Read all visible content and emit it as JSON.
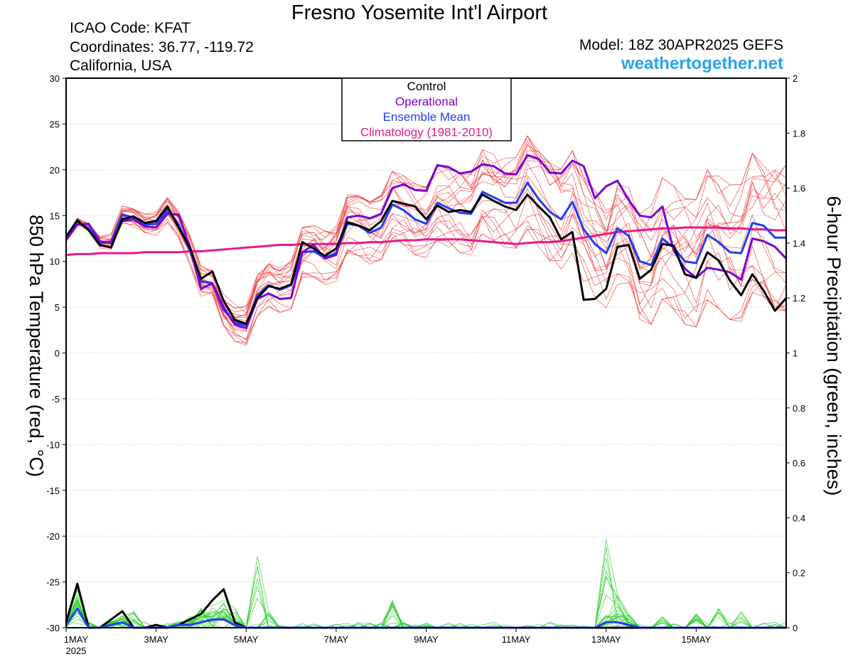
{
  "header": {
    "title": "Fresno Yosemite Int'l Airport",
    "icao": "ICAO Code: KFAT",
    "coordinates": "Coordinates: 36.77, -119.72",
    "region": "California, USA",
    "model": "Model: 18Z 30APR2025 GEFS",
    "website": "weathertogether.net"
  },
  "colors": {
    "control": "#000000",
    "operational": "#7b00d4",
    "ensemble_mean": "#1f3ff0",
    "climatology": "#e8198b",
    "members_temp": "#f03a3a",
    "members_precip": "#22cc22",
    "website": "#2aa3ea"
  },
  "chart_data": {
    "type": "line",
    "legend": [
      "Control",
      "Operational",
      "Ensemble Mean",
      "Climatology (1981-2010)"
    ],
    "legend_position": "top-center",
    "x_step_hours": 6,
    "x_start": "1MAY2025 00Z",
    "x_ticks": [
      {
        "i": 0,
        "label": "1MAY",
        "sub": "2025"
      },
      {
        "i": 8,
        "label": "3MAY"
      },
      {
        "i": 16,
        "label": "5MAY"
      },
      {
        "i": 24,
        "label": "7MAY"
      },
      {
        "i": 32,
        "label": "9MAY"
      },
      {
        "i": 40,
        "label": "11MAY"
      },
      {
        "i": 48,
        "label": "13MAY"
      },
      {
        "i": 56,
        "label": "15MAY"
      }
    ],
    "x_count": 65,
    "y_left": {
      "label": "850 hPa Temperature (red, °C)",
      "lim": [
        -30,
        30
      ],
      "ticks": [
        30,
        25,
        20,
        15,
        10,
        5,
        0,
        -5,
        -10,
        -15,
        -20,
        -25,
        -30
      ]
    },
    "y_right": {
      "label": "6-hour Precipitation (green, inches)",
      "lim": [
        0,
        2
      ],
      "ticks": [
        2,
        1.8,
        1.6,
        1.4,
        1.2,
        1,
        0.8,
        0.6,
        0.4,
        0.2,
        0
      ]
    },
    "series": [
      {
        "name": "Control",
        "axis": "left",
        "values": [
          12.7,
          14.5,
          13.4,
          11.8,
          11.5,
          14.6,
          14.9,
          14.2,
          14.4,
          16.0,
          13.7,
          11.5,
          8.1,
          8.9,
          5.7,
          3.6,
          3.2,
          6.0,
          7.3,
          7.0,
          7.5,
          12.1,
          11.4,
          10.6,
          11.4,
          14.3,
          13.9,
          13.4,
          14.4,
          16.6,
          16.3,
          16.0,
          14.6,
          16.1,
          15.4,
          15.6,
          15.4,
          17.3,
          16.6,
          16.0,
          15.6,
          17.3,
          16.0,
          14.8,
          12.4,
          13.2,
          5.8,
          5.9,
          7.0,
          11.6,
          11.8,
          8.1,
          9.1,
          11.9,
          11.7,
          8.6,
          8.2,
          11.0,
          10.1,
          7.9,
          6.3,
          8.6,
          6.8,
          4.6,
          6.0
        ]
      },
      {
        "name": "Operational",
        "axis": "left",
        "values": [
          12.3,
          14.0,
          14.1,
          12.2,
          12.0,
          14.4,
          14.6,
          13.8,
          13.7,
          15.2,
          15.1,
          11.6,
          7.0,
          7.6,
          5.0,
          3.1,
          2.7,
          5.9,
          6.5,
          5.9,
          6.0,
          11.0,
          11.8,
          10.3,
          10.7,
          14.8,
          15.0,
          14.7,
          15.2,
          18.0,
          18.4,
          17.8,
          17.7,
          20.5,
          20.3,
          19.6,
          19.8,
          20.6,
          20.4,
          19.6,
          19.5,
          21.6,
          21.2,
          19.7,
          19.6,
          21.0,
          20.4,
          16.9,
          18.2,
          18.8,
          16.7,
          15.0,
          14.8,
          16.0,
          11.2,
          9.2,
          8.2,
          9.3,
          9.1,
          8.8,
          8.0,
          12.5,
          12.2,
          11.6,
          10.3
        ]
      },
      {
        "name": "Ensemble Mean",
        "axis": "left",
        "values": [
          12.5,
          14.3,
          13.6,
          12.0,
          12.1,
          15.1,
          14.8,
          14.0,
          14.1,
          15.6,
          14.0,
          11.2,
          7.8,
          7.6,
          4.7,
          3.3,
          3.0,
          6.3,
          7.4,
          6.9,
          7.4,
          11.0,
          11.1,
          10.4,
          10.9,
          14.1,
          13.9,
          13.1,
          13.7,
          16.2,
          15.6,
          14.6,
          14.1,
          16.4,
          15.8,
          15.3,
          15.2,
          17.6,
          17.0,
          16.4,
          16.4,
          18.6,
          16.8,
          15.4,
          14.6,
          16.5,
          13.5,
          11.9,
          10.9,
          13.6,
          12.8,
          10.0,
          9.6,
          12.5,
          11.5,
          10.0,
          9.8,
          12.9,
          12.1,
          11.0,
          10.9,
          14.2,
          13.9,
          12.6,
          12.6
        ]
      },
      {
        "name": "Climatology (1981-2010)",
        "axis": "left",
        "values": [
          10.7,
          10.8,
          10.8,
          10.9,
          10.9,
          10.9,
          10.9,
          11.0,
          11.0,
          11.0,
          11.0,
          11.1,
          11.1,
          11.2,
          11.3,
          11.4,
          11.5,
          11.6,
          11.7,
          11.8,
          11.8,
          11.9,
          11.9,
          11.9,
          11.9,
          12.0,
          12.0,
          12.1,
          12.1,
          12.2,
          12.3,
          12.3,
          12.4,
          12.4,
          12.4,
          12.4,
          12.3,
          12.2,
          12.1,
          12.0,
          11.9,
          12.0,
          12.1,
          12.1,
          12.2,
          12.4,
          12.6,
          12.8,
          13.0,
          13.2,
          13.3,
          13.4,
          13.5,
          13.6,
          13.6,
          13.7,
          13.7,
          13.7,
          13.7,
          13.6,
          13.6,
          13.5,
          13.5,
          13.4,
          13.4
        ]
      },
      {
        "name": "Control precip",
        "axis": "right",
        "values": [
          0.02,
          0.16,
          0.0,
          0.0,
          0.03,
          0.06,
          0.0,
          0.0,
          0.01,
          0.0,
          0.01,
          0.03,
          0.05,
          0.1,
          0.14,
          0.02,
          0.0,
          0.0,
          0.0,
          0.0,
          0.0,
          0.0,
          0.0,
          0.0,
          0.0,
          0.0,
          0.0,
          0.0,
          0.0,
          0.0,
          0.0,
          0.0,
          0.0,
          0.0,
          0.0,
          0.0,
          0.0,
          0.0,
          0.0,
          0.0,
          0.0,
          0.0,
          0.0,
          0.0,
          0.0,
          0.0,
          0.0,
          0.0,
          0.0,
          0.0,
          0.0,
          0.0,
          0.0,
          0.0,
          0.0,
          0.0,
          0.0,
          0.0,
          0.0,
          0.0,
          0.0,
          0.0,
          0.0,
          0.0,
          0.0
        ]
      },
      {
        "name": "Ensemble Mean precip",
        "axis": "right",
        "values": [
          0.01,
          0.07,
          0.0,
          0.0,
          0.01,
          0.02,
          0.0,
          0.0,
          0.0,
          0.0,
          0.01,
          0.01,
          0.02,
          0.03,
          0.03,
          0.01,
          0.0,
          0.0,
          0.0,
          0.0,
          0.0,
          0.0,
          0.0,
          0.0,
          0.0,
          0.0,
          0.0,
          0.0,
          0.0,
          0.0,
          0.0,
          0.0,
          0.0,
          0.0,
          0.0,
          0.0,
          0.0,
          0.0,
          0.0,
          0.0,
          0.0,
          0.0,
          0.0,
          0.0,
          0.0,
          0.0,
          0.0,
          0.0,
          0.02,
          0.02,
          0.01,
          0.0,
          0.0,
          0.0,
          0.0,
          0.0,
          0.0,
          0.0,
          0.0,
          0.0,
          0.0,
          0.0,
          0.0,
          0.0,
          0.0
        ]
      }
    ]
  }
}
